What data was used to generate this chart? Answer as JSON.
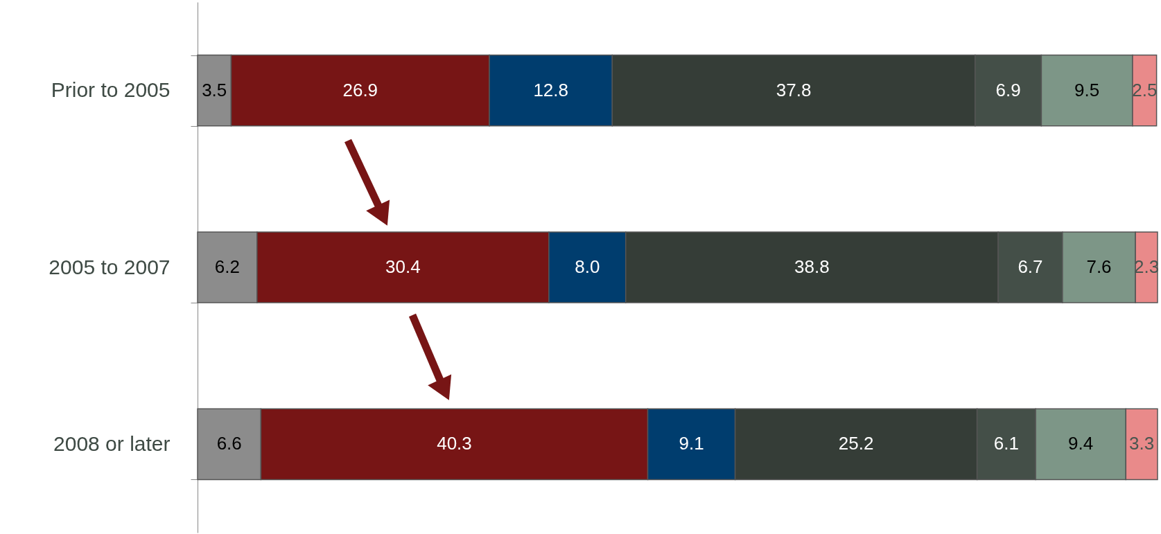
{
  "chart_data": {
    "type": "bar",
    "orientation": "horizontal",
    "stacked": true,
    "legend": false,
    "grid": false,
    "categories": [
      "Prior to 2005",
      "2005 to 2007",
      "2008 or later"
    ],
    "series": [
      {
        "color": "#8c8c8c",
        "values": [
          3.5,
          6.2,
          6.6
        ],
        "value_labels": [
          "3.5",
          "6.2",
          "6.6"
        ]
      },
      {
        "color": "#771515",
        "values": [
          26.9,
          30.4,
          40.3
        ],
        "value_labels": [
          "26.9",
          "30.4",
          "40.3"
        ]
      },
      {
        "color": "#003d6e",
        "values": [
          12.8,
          8.0,
          9.1
        ],
        "value_labels": [
          "12.8",
          "8.0",
          "9.1"
        ]
      },
      {
        "color": "#353d37",
        "values": [
          37.8,
          38.8,
          25.2
        ],
        "value_labels": [
          "37.8",
          "38.8",
          "25.2"
        ]
      },
      {
        "color": "#444f48",
        "values": [
          6.9,
          6.7,
          6.1
        ],
        "value_labels": [
          "6.9",
          "6.7",
          "6.1"
        ]
      },
      {
        "color": "#7d9687",
        "values": [
          9.5,
          7.6,
          9.4
        ],
        "value_labels": [
          "9.5",
          "7.6",
          "9.4"
        ]
      },
      {
        "color": "#e98a8a",
        "values": [
          2.5,
          2.3,
          3.3
        ],
        "value_labels": [
          "2.5",
          "2.3",
          "3.3"
        ]
      }
    ]
  }
}
